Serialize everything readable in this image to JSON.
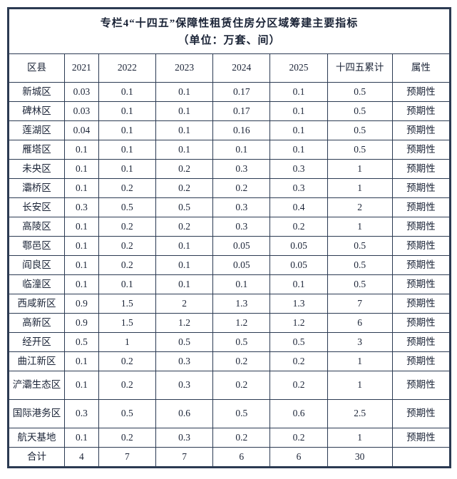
{
  "title_line1": "专栏4“十四五”保障性租赁住房分区域筹建主要指标",
  "title_line2": "（单位：万套、间）",
  "columns": {
    "district": "区县",
    "y2021": "2021",
    "y2022": "2022",
    "y2023": "2023",
    "y2024": "2024",
    "y2025": "2025",
    "total": "十四五累计",
    "attr": "属性"
  },
  "rows": [
    {
      "d": "新城区",
      "v": [
        "0.03",
        "0.1",
        "0.1",
        "0.17",
        "0.1",
        "0.5"
      ],
      "a": "预期性"
    },
    {
      "d": "碑林区",
      "v": [
        "0.03",
        "0.1",
        "0.1",
        "0.17",
        "0.1",
        "0.5"
      ],
      "a": "预期性"
    },
    {
      "d": "莲湖区",
      "v": [
        "0.04",
        "0.1",
        "0.1",
        "0.16",
        "0.1",
        "0.5"
      ],
      "a": "预期性"
    },
    {
      "d": "雁塔区",
      "v": [
        "0.1",
        "0.1",
        "0.1",
        "0.1",
        "0.1",
        "0.5"
      ],
      "a": "预期性"
    },
    {
      "d": "未央区",
      "v": [
        "0.1",
        "0.1",
        "0.2",
        "0.3",
        "0.3",
        "1"
      ],
      "a": "预期性"
    },
    {
      "d": "灞桥区",
      "v": [
        "0.1",
        "0.2",
        "0.2",
        "0.2",
        "0.3",
        "1"
      ],
      "a": "预期性"
    },
    {
      "d": "长安区",
      "v": [
        "0.3",
        "0.5",
        "0.5",
        "0.3",
        "0.4",
        "2"
      ],
      "a": "预期性"
    },
    {
      "d": "高陵区",
      "v": [
        "0.1",
        "0.2",
        "0.2",
        "0.3",
        "0.2",
        "1"
      ],
      "a": "预期性"
    },
    {
      "d": "鄠邑区",
      "v": [
        "0.1",
        "0.2",
        "0.1",
        "0.05",
        "0.05",
        "0.5"
      ],
      "a": "预期性"
    },
    {
      "d": "阎良区",
      "v": [
        "0.1",
        "0.2",
        "0.1",
        "0.05",
        "0.05",
        "0.5"
      ],
      "a": "预期性"
    },
    {
      "d": "临潼区",
      "v": [
        "0.1",
        "0.1",
        "0.1",
        "0.1",
        "0.1",
        "0.5"
      ],
      "a": "预期性"
    },
    {
      "d": "西咸新区",
      "v": [
        "0.9",
        "1.5",
        "2",
        "1.3",
        "1.3",
        "7"
      ],
      "a": "预期性"
    },
    {
      "d": "高新区",
      "v": [
        "0.9",
        "1.5",
        "1.2",
        "1.2",
        "1.2",
        "6"
      ],
      "a": "预期性"
    },
    {
      "d": "经开区",
      "v": [
        "0.5",
        "1",
        "0.5",
        "0.5",
        "0.5",
        "3"
      ],
      "a": "预期性"
    },
    {
      "d": "曲江新区",
      "v": [
        "0.1",
        "0.2",
        "0.3",
        "0.2",
        "0.2",
        "1"
      ],
      "a": "预期性"
    },
    {
      "d": "浐灞生态区",
      "v": [
        "0.1",
        "0.2",
        "0.3",
        "0.2",
        "0.2",
        "1"
      ],
      "a": "预期性",
      "tall": true
    },
    {
      "d": "国际港务区",
      "v": [
        "0.3",
        "0.5",
        "0.6",
        "0.5",
        "0.6",
        "2.5"
      ],
      "a": "预期性",
      "tall": true
    },
    {
      "d": "航天基地",
      "v": [
        "0.1",
        "0.2",
        "0.3",
        "0.2",
        "0.2",
        "1"
      ],
      "a": "预期性"
    },
    {
      "d": "合计",
      "v": [
        "4",
        "7",
        "7",
        "6",
        "6",
        "30"
      ],
      "a": ""
    }
  ],
  "style": {
    "border_color": "#2b3a52",
    "text_color": "#1a2336",
    "background": "#ffffff",
    "body_fontsize": 13.5,
    "title_fontsize": 15
  }
}
